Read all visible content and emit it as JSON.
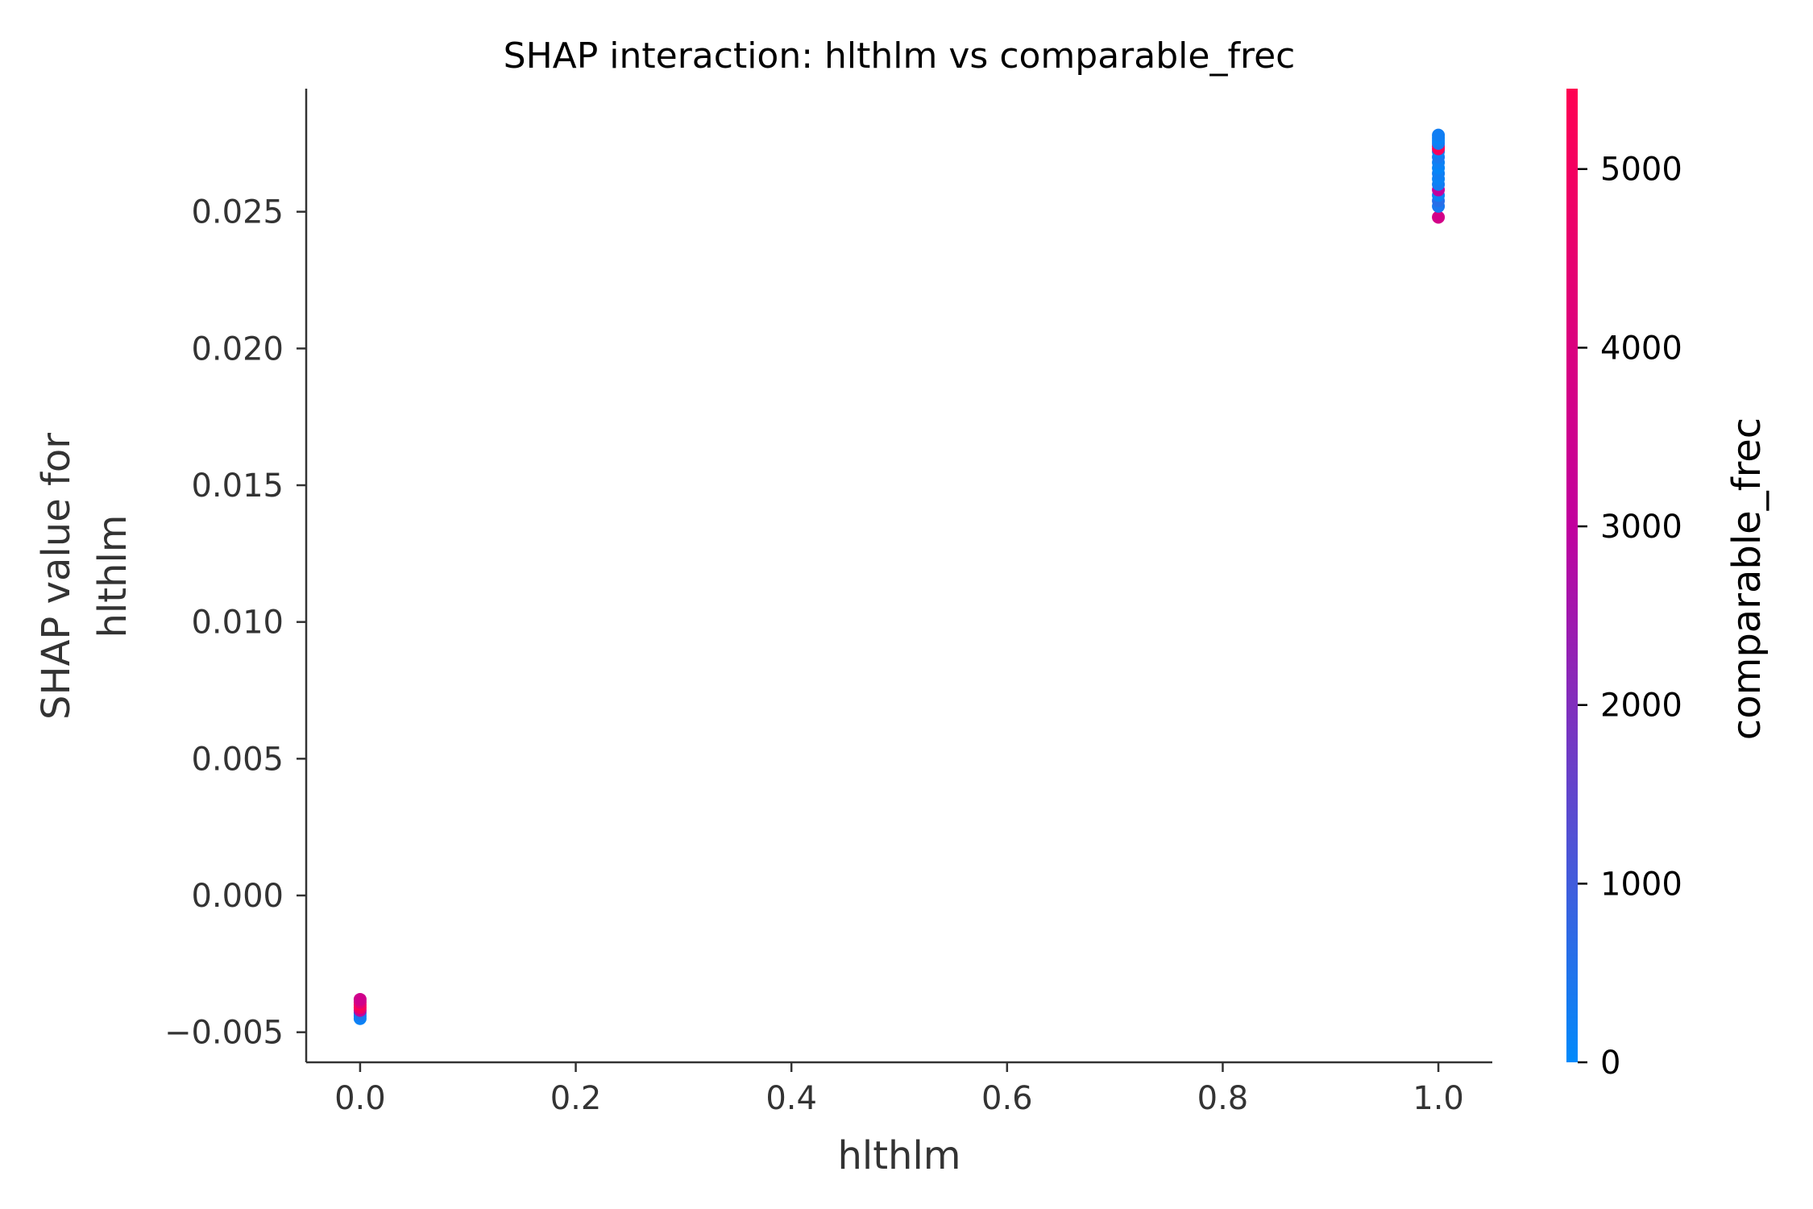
{
  "chart_data": {
    "type": "scatter",
    "title": "SHAP interaction: hlthlm vs comparable_frec",
    "xlabel": "hlthlm",
    "ylabel_lines": [
      "SHAP value for",
      "hlthlm"
    ],
    "xlim": [
      -0.05,
      1.05
    ],
    "ylim": [
      -0.0061,
      0.0295
    ],
    "x_ticks": [
      0.0,
      0.2,
      0.4,
      0.6,
      0.8,
      1.0
    ],
    "x_tick_labels": [
      "0.0",
      "0.2",
      "0.4",
      "0.6",
      "0.8",
      "1.0"
    ],
    "y_ticks": [
      -0.005,
      0.0,
      0.005,
      0.01,
      0.015,
      0.02,
      0.025
    ],
    "y_tick_labels": [
      "−0.005",
      "0.000",
      "0.005",
      "0.010",
      "0.015",
      "0.020",
      "0.025"
    ],
    "grid": false,
    "colorbar": {
      "label": "comparable_frec",
      "range": [
        0,
        5450
      ],
      "ticks": [
        0,
        1000,
        2000,
        3000,
        4000,
        5000
      ],
      "tick_labels": [
        "0",
        "1000",
        "2000",
        "3000",
        "4000",
        "5000"
      ],
      "color_low": "#008afb",
      "color_mid": "#c1009e",
      "color_high": "#ff0052"
    },
    "points": [
      {
        "x": 0.0,
        "y": -0.0045,
        "c": 150
      },
      {
        "x": 0.0,
        "y": -0.0044,
        "c": 300
      },
      {
        "x": 0.0,
        "y": -0.0043,
        "c": 500
      },
      {
        "x": 0.0,
        "y": -0.0042,
        "c": 3200
      },
      {
        "x": 0.0,
        "y": -0.0041,
        "c": 4800
      },
      {
        "x": 0.0,
        "y": -0.004,
        "c": 5300
      },
      {
        "x": 0.0,
        "y": -0.0039,
        "c": 4300
      },
      {
        "x": 0.0,
        "y": -0.0038,
        "c": 3600
      },
      {
        "x": 1.0,
        "y": 0.0248,
        "c": 3700
      },
      {
        "x": 1.0,
        "y": 0.0252,
        "c": 400
      },
      {
        "x": 1.0,
        "y": 0.0254,
        "c": 600
      },
      {
        "x": 1.0,
        "y": 0.0256,
        "c": 200
      },
      {
        "x": 1.0,
        "y": 0.0258,
        "c": 3000
      },
      {
        "x": 1.0,
        "y": 0.026,
        "c": 300
      },
      {
        "x": 1.0,
        "y": 0.0262,
        "c": 150
      },
      {
        "x": 1.0,
        "y": 0.0264,
        "c": 250
      },
      {
        "x": 1.0,
        "y": 0.0266,
        "c": 100
      },
      {
        "x": 1.0,
        "y": 0.0268,
        "c": 200
      },
      {
        "x": 1.0,
        "y": 0.027,
        "c": 350
      },
      {
        "x": 1.0,
        "y": 0.0272,
        "c": 150
      },
      {
        "x": 1.0,
        "y": 0.0273,
        "c": 5000
      },
      {
        "x": 1.0,
        "y": 0.0274,
        "c": 5300
      },
      {
        "x": 1.0,
        "y": 0.0275,
        "c": 300
      },
      {
        "x": 1.0,
        "y": 0.0276,
        "c": 200
      },
      {
        "x": 1.0,
        "y": 0.0277,
        "c": 100
      },
      {
        "x": 1.0,
        "y": 0.0278,
        "c": 250
      }
    ]
  }
}
